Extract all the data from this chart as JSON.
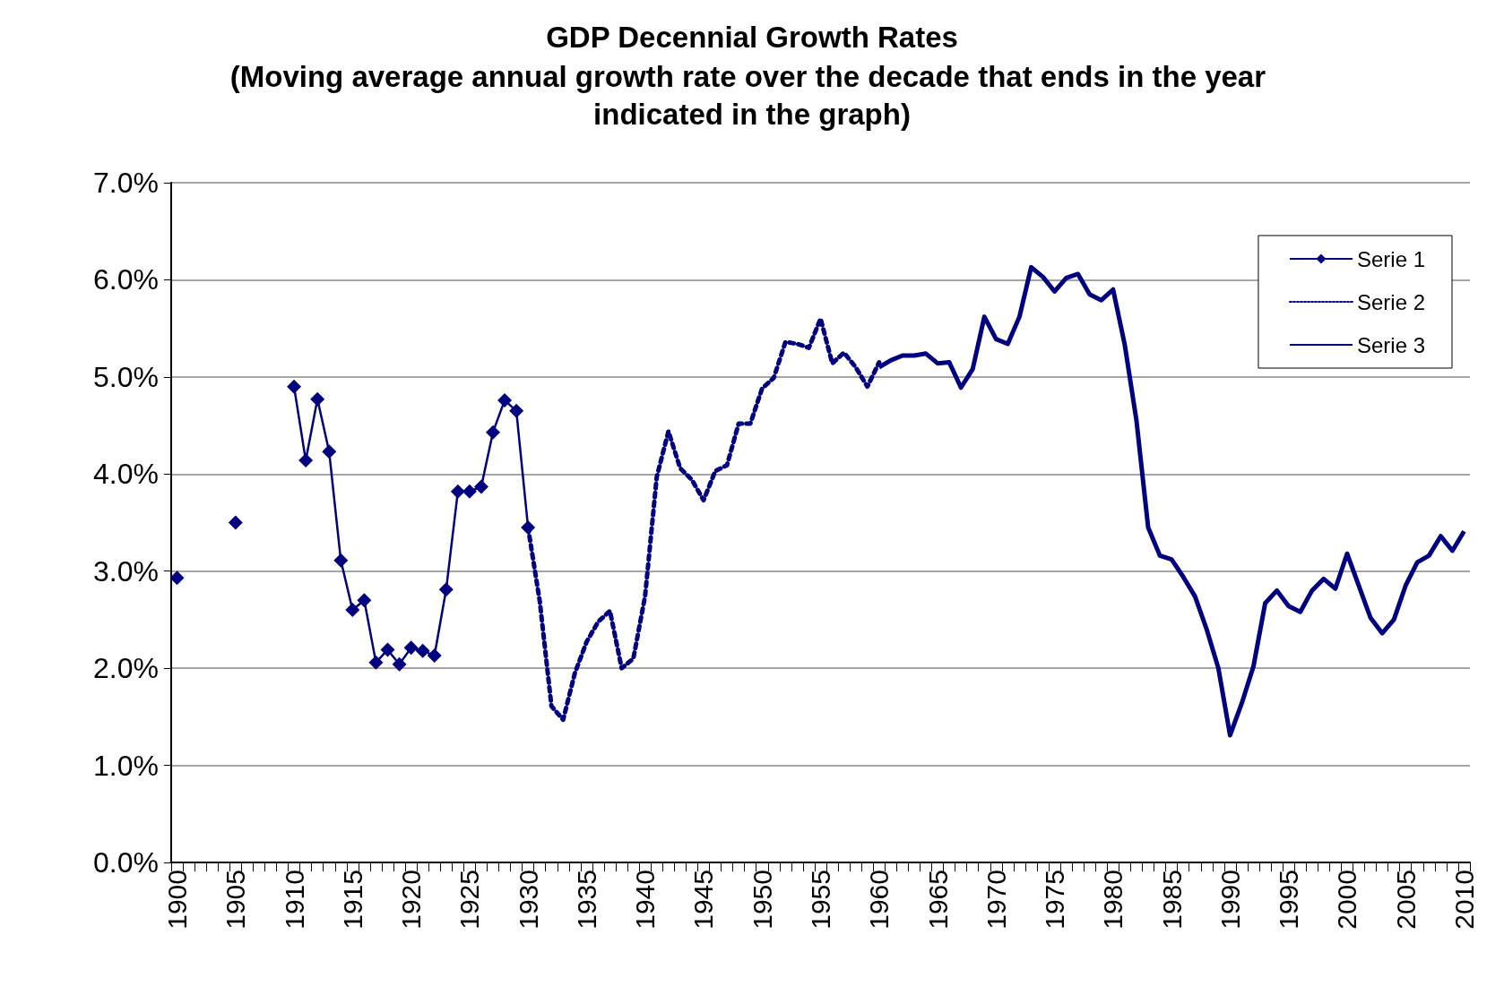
{
  "chart_data": {
    "type": "line",
    "title": "GDP Decennial Growth Rates",
    "subtitle": "(Moving average annual growth rate over the decade that ends in the year indicated in the graph)",
    "categories": [
      "1900",
      null,
      null,
      null,
      null,
      "1905",
      null,
      null,
      null,
      null,
      "1910",
      null,
      null,
      null,
      null,
      "1915",
      null,
      null,
      null,
      null,
      "1920",
      null,
      null,
      null,
      null,
      "1925",
      null,
      null,
      null,
      null,
      "1930",
      null,
      null,
      null,
      null,
      "1935",
      null,
      null,
      null,
      null,
      "1940",
      null,
      null,
      null,
      null,
      "1945",
      null,
      null,
      null,
      null,
      "1950",
      null,
      null,
      null,
      null,
      "1955",
      null,
      null,
      null,
      null,
      "1960",
      null,
      null,
      null,
      null,
      "1965",
      null,
      null,
      null,
      null,
      "1970",
      null,
      null,
      null,
      null,
      "1975",
      null,
      null,
      null,
      null,
      "1980",
      null,
      null,
      null,
      null,
      "1985",
      null,
      null,
      null,
      null,
      "1990",
      null,
      null,
      null,
      null,
      "1995",
      null,
      null,
      null,
      null,
      "2000",
      null,
      null,
      null,
      null,
      "2005",
      null,
      null,
      null,
      null,
      "2010"
    ],
    "series": [
      {
        "name": "Serie 1",
        "color": "#000080",
        "marker": "diamond",
        "line_style": "solid",
        "values": [
          2.93,
          null,
          null,
          null,
          null,
          3.5,
          null,
          null,
          null,
          null,
          4.9,
          4.14,
          4.77,
          4.23,
          3.11,
          2.6,
          2.7,
          2.06,
          2.19,
          2.04,
          2.21,
          2.18,
          2.13,
          2.81,
          3.82,
          3.82,
          3.87,
          4.43,
          4.76,
          4.65,
          3.45,
          null,
          null,
          null,
          null,
          null,
          null,
          null,
          null,
          null,
          null,
          null,
          null,
          null,
          null,
          null,
          null,
          null,
          null,
          null,
          null,
          null,
          null,
          null,
          null,
          null,
          null,
          null,
          null,
          null,
          null,
          null,
          null,
          null,
          null,
          null,
          null,
          null,
          null,
          null,
          null,
          null,
          null,
          null,
          null,
          null,
          null,
          null,
          null,
          null,
          null,
          null,
          null,
          null,
          null,
          null,
          null,
          null,
          null,
          null,
          null,
          null,
          null,
          null,
          null,
          null,
          null,
          null,
          null,
          null,
          null,
          null,
          null,
          null,
          null,
          null,
          null,
          null,
          null,
          null,
          null
        ]
      },
      {
        "name": "Serie 2",
        "color": "#000080",
        "marker": "none",
        "line_style": "dotted",
        "values": [
          null,
          null,
          null,
          null,
          null,
          null,
          null,
          null,
          null,
          null,
          null,
          null,
          null,
          null,
          null,
          null,
          null,
          null,
          null,
          null,
          null,
          null,
          null,
          null,
          null,
          null,
          null,
          null,
          null,
          null,
          3.45,
          2.69,
          1.61,
          1.47,
          1.95,
          2.27,
          2.48,
          2.59,
          2.0,
          2.1,
          2.74,
          3.97,
          4.44,
          4.06,
          3.94,
          3.73,
          4.03,
          4.09,
          4.52,
          4.52,
          4.88,
          4.99,
          5.36,
          5.34,
          5.3,
          5.6,
          5.14,
          5.25,
          5.1,
          4.9,
          5.15,
          null,
          null,
          null,
          null,
          null,
          null,
          null,
          null,
          null,
          null,
          null,
          null,
          null,
          null,
          null,
          null,
          null,
          null,
          null,
          null,
          null,
          null,
          null,
          null,
          null,
          null,
          null,
          null,
          null,
          null,
          null,
          null,
          null,
          null,
          null,
          null,
          null,
          null,
          null,
          null,
          null,
          null,
          null,
          null,
          null,
          null,
          null,
          null,
          null,
          null
        ]
      },
      {
        "name": "Serie 3",
        "color": "#000080",
        "marker": "none",
        "line_style": "solid",
        "values": [
          null,
          null,
          null,
          null,
          null,
          null,
          null,
          null,
          null,
          null,
          null,
          null,
          null,
          null,
          null,
          null,
          null,
          null,
          null,
          null,
          null,
          null,
          null,
          null,
          null,
          null,
          null,
          null,
          null,
          null,
          null,
          null,
          null,
          null,
          null,
          null,
          null,
          null,
          null,
          null,
          null,
          null,
          null,
          null,
          null,
          null,
          null,
          null,
          null,
          null,
          null,
          null,
          null,
          null,
          null,
          null,
          null,
          null,
          null,
          null,
          5.1,
          5.17,
          5.22,
          5.22,
          5.24,
          5.14,
          5.15,
          4.89,
          5.08,
          5.62,
          5.39,
          5.34,
          5.62,
          6.13,
          6.03,
          5.88,
          6.02,
          6.06,
          5.85,
          5.79,
          5.9,
          5.33,
          4.55,
          3.45,
          3.16,
          3.12,
          2.94,
          2.74,
          2.4,
          2.0,
          1.31,
          1.64,
          2.02,
          2.67,
          2.8,
          2.64,
          2.58,
          2.8,
          2.92,
          2.82,
          3.18,
          2.85,
          2.52,
          2.36,
          2.5,
          2.85,
          3.09,
          3.16,
          3.36,
          3.21,
          3.41
        ]
      }
    ],
    "ylim": [
      0,
      7
    ],
    "yticks": [
      {
        "value": 0,
        "label": "0.0%"
      },
      {
        "value": 1,
        "label": "1.0%"
      },
      {
        "value": 2,
        "label": "2.0%"
      },
      {
        "value": 3,
        "label": "3.0%"
      },
      {
        "value": 4,
        "label": "4.0%"
      },
      {
        "value": 5,
        "label": "5.0%"
      },
      {
        "value": 6,
        "label": "6.0%"
      },
      {
        "value": 7,
        "label": "7.0%"
      }
    ],
    "grid": "y",
    "legend": "top right"
  }
}
